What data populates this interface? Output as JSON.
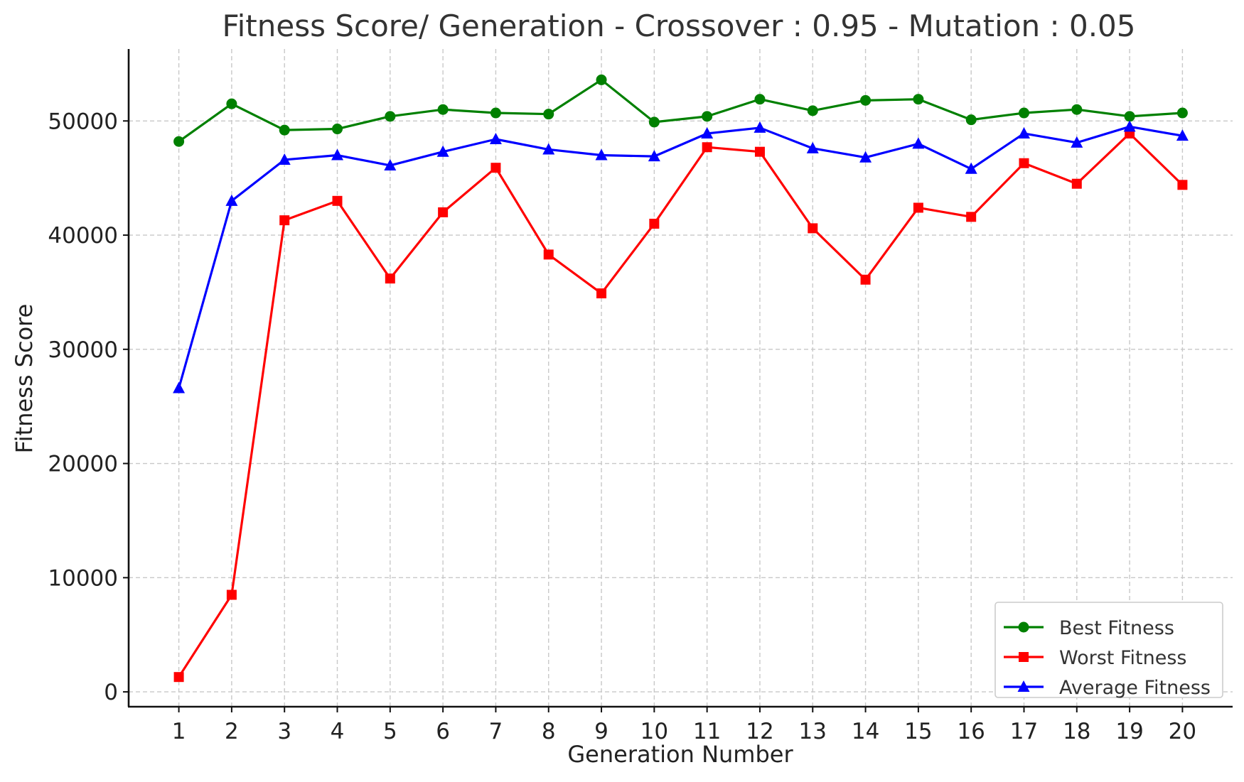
{
  "chart_data": {
    "type": "line",
    "title": "Fitness Score/ Generation - Crossover : 0.95 - Mutation : 0.05",
    "xlabel": "Generation Number",
    "ylabel": "Fitness Score",
    "x": [
      1,
      2,
      3,
      4,
      5,
      6,
      7,
      8,
      9,
      10,
      11,
      12,
      13,
      14,
      15,
      16,
      17,
      18,
      19,
      20
    ],
    "xlim": [
      0.05,
      20.95
    ],
    "ylim": [
      -1300,
      56300
    ],
    "yticks": [
      0,
      10000,
      20000,
      30000,
      40000,
      50000
    ],
    "grid": true,
    "legend_position": "bottom-right",
    "series": [
      {
        "name": "Best Fitness",
        "color": "#008000",
        "marker": "circle",
        "values": [
          48200,
          51500,
          49200,
          49300,
          50400,
          51000,
          50700,
          50600,
          53600,
          49900,
          50400,
          51900,
          50900,
          51800,
          51900,
          50100,
          50700,
          51000,
          50400,
          50700
        ]
      },
      {
        "name": "Worst Fitness",
        "color": "#ff0000",
        "marker": "square",
        "values": [
          1300,
          8500,
          41300,
          43000,
          36200,
          42000,
          45900,
          38300,
          34900,
          41000,
          47700,
          47300,
          40600,
          36100,
          42400,
          41600,
          46300,
          44500,
          48900,
          44400
        ]
      },
      {
        "name": "Average Fitness",
        "color": "#0000ff",
        "marker": "triangle",
        "values": [
          26600,
          43000,
          46600,
          47000,
          46100,
          47300,
          48400,
          47500,
          47000,
          46900,
          48900,
          49400,
          47600,
          46800,
          48000,
          45800,
          48900,
          48100,
          49500,
          48700
        ]
      }
    ]
  }
}
